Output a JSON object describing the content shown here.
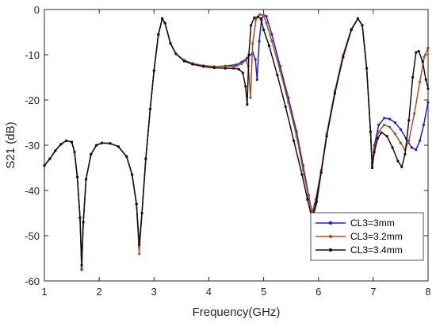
{
  "chart_data": {
    "type": "line",
    "title": "",
    "xlabel": "Frequency(GHz)",
    "ylabel": "S21 (dB)",
    "xlim": [
      1,
      8
    ],
    "ylim": [
      -60,
      0
    ],
    "xticks": [
      1,
      2,
      3,
      4,
      5,
      6,
      7,
      8
    ],
    "yticks": [
      0,
      -10,
      -20,
      -30,
      -40,
      -50,
      -60
    ],
    "grid": false,
    "legend_position": "bottom-right",
    "series": [
      {
        "name": "CL3=3mm",
        "color": "#2020d0",
        "marker": "dot",
        "points": [
          [
            1.0,
            -34.5
          ],
          [
            1.1,
            -33.0
          ],
          [
            1.2,
            -31.2
          ],
          [
            1.3,
            -29.8
          ],
          [
            1.4,
            -29.0
          ],
          [
            1.5,
            -29.3
          ],
          [
            1.55,
            -31.5
          ],
          [
            1.6,
            -37.0
          ],
          [
            1.65,
            -46.0
          ],
          [
            1.68,
            -57.5
          ],
          [
            1.71,
            -47.0
          ],
          [
            1.76,
            -37.5
          ],
          [
            1.85,
            -32.0
          ],
          [
            1.95,
            -30.0
          ],
          [
            2.05,
            -29.5
          ],
          [
            2.2,
            -29.6
          ],
          [
            2.35,
            -30.3
          ],
          [
            2.5,
            -32.5
          ],
          [
            2.6,
            -36.5
          ],
          [
            2.68,
            -43.0
          ],
          [
            2.73,
            -52.5
          ],
          [
            2.78,
            -45.0
          ],
          [
            2.85,
            -33.0
          ],
          [
            2.93,
            -22.0
          ],
          [
            3.0,
            -13.5
          ],
          [
            3.08,
            -5.5
          ],
          [
            3.15,
            -2.0
          ],
          [
            3.2,
            -3.0
          ],
          [
            3.3,
            -7.5
          ],
          [
            3.4,
            -9.8
          ],
          [
            3.55,
            -11.2
          ],
          [
            3.7,
            -11.9
          ],
          [
            3.9,
            -12.4
          ],
          [
            4.1,
            -12.6
          ],
          [
            4.3,
            -12.5
          ],
          [
            4.5,
            -12.2
          ],
          [
            4.6,
            -11.6
          ],
          [
            4.7,
            -10.7
          ],
          [
            4.8,
            -9.6
          ],
          [
            4.85,
            -11.0
          ],
          [
            4.88,
            -15.5
          ],
          [
            4.92,
            -7.0
          ],
          [
            4.96,
            -2.3
          ],
          [
            5.0,
            -1.2
          ],
          [
            5.05,
            -1.5
          ],
          [
            5.15,
            -5.5
          ],
          [
            5.3,
            -12.5
          ],
          [
            5.45,
            -19.5
          ],
          [
            5.6,
            -27.0
          ],
          [
            5.72,
            -34.5
          ],
          [
            5.82,
            -41.0
          ],
          [
            5.9,
            -46.0
          ],
          [
            5.97,
            -42.5
          ],
          [
            6.05,
            -36.0
          ],
          [
            6.15,
            -28.0
          ],
          [
            6.3,
            -18.5
          ],
          [
            6.45,
            -10.5
          ],
          [
            6.6,
            -4.5
          ],
          [
            6.72,
            -2.0
          ],
          [
            6.8,
            -3.5
          ],
          [
            6.88,
            -13.0
          ],
          [
            6.95,
            -27.0
          ],
          [
            6.98,
            -34.0
          ],
          [
            7.02,
            -30.0
          ],
          [
            7.1,
            -25.5
          ],
          [
            7.2,
            -24.0
          ],
          [
            7.3,
            -24.2
          ],
          [
            7.4,
            -25.0
          ],
          [
            7.5,
            -26.5
          ],
          [
            7.6,
            -28.5
          ],
          [
            7.7,
            -30.5
          ],
          [
            7.78,
            -31.0
          ],
          [
            7.85,
            -29.0
          ],
          [
            7.92,
            -25.5
          ],
          [
            8.0,
            -20.5
          ]
        ]
      },
      {
        "name": "CL3=3.2mm",
        "color": "#a0522d",
        "marker": "dot",
        "points": [
          [
            1.0,
            -34.5
          ],
          [
            1.1,
            -33.0
          ],
          [
            1.2,
            -31.2
          ],
          [
            1.3,
            -29.8
          ],
          [
            1.4,
            -29.0
          ],
          [
            1.5,
            -29.3
          ],
          [
            1.55,
            -31.5
          ],
          [
            1.6,
            -37.0
          ],
          [
            1.65,
            -46.0
          ],
          [
            1.68,
            -57.0
          ],
          [
            1.71,
            -47.0
          ],
          [
            1.76,
            -37.5
          ],
          [
            1.85,
            -32.0
          ],
          [
            1.95,
            -30.0
          ],
          [
            2.05,
            -29.5
          ],
          [
            2.2,
            -29.6
          ],
          [
            2.35,
            -30.3
          ],
          [
            2.5,
            -32.5
          ],
          [
            2.6,
            -36.5
          ],
          [
            2.68,
            -43.0
          ],
          [
            2.73,
            -54.0
          ],
          [
            2.78,
            -45.0
          ],
          [
            2.85,
            -33.0
          ],
          [
            2.93,
            -22.0
          ],
          [
            3.0,
            -13.5
          ],
          [
            3.08,
            -5.5
          ],
          [
            3.15,
            -2.0
          ],
          [
            3.2,
            -3.0
          ],
          [
            3.3,
            -7.5
          ],
          [
            3.4,
            -9.8
          ],
          [
            3.55,
            -11.2
          ],
          [
            3.7,
            -11.9
          ],
          [
            3.9,
            -12.4
          ],
          [
            4.1,
            -12.6
          ],
          [
            4.3,
            -12.6
          ],
          [
            4.5,
            -12.5
          ],
          [
            4.6,
            -12.0
          ],
          [
            4.68,
            -11.2
          ],
          [
            4.72,
            -12.5
          ],
          [
            4.76,
            -19.5
          ],
          [
            4.8,
            -7.5
          ],
          [
            4.86,
            -2.2
          ],
          [
            4.93,
            -1.1
          ],
          [
            5.0,
            -1.3
          ],
          [
            5.05,
            -3.0
          ],
          [
            5.15,
            -7.0
          ],
          [
            5.3,
            -13.5
          ],
          [
            5.45,
            -20.5
          ],
          [
            5.6,
            -28.0
          ],
          [
            5.72,
            -35.5
          ],
          [
            5.82,
            -41.5
          ],
          [
            5.88,
            -45.0
          ],
          [
            5.95,
            -42.0
          ],
          [
            6.05,
            -35.5
          ],
          [
            6.15,
            -27.5
          ],
          [
            6.3,
            -18.0
          ],
          [
            6.45,
            -10.0
          ],
          [
            6.6,
            -4.3
          ],
          [
            6.72,
            -2.0
          ],
          [
            6.8,
            -3.5
          ],
          [
            6.88,
            -13.0
          ],
          [
            6.95,
            -27.0
          ],
          [
            6.98,
            -34.5
          ],
          [
            7.02,
            -30.5
          ],
          [
            7.1,
            -27.0
          ],
          [
            7.2,
            -25.5
          ],
          [
            7.3,
            -26.0
          ],
          [
            7.4,
            -27.5
          ],
          [
            7.5,
            -29.5
          ],
          [
            7.58,
            -31.0
          ],
          [
            7.65,
            -29.0
          ],
          [
            7.75,
            -23.0
          ],
          [
            7.85,
            -16.0
          ],
          [
            7.93,
            -10.5
          ],
          [
            8.0,
            -8.5
          ]
        ]
      },
      {
        "name": "CL3=3.4mm",
        "color": "#111111",
        "marker": "dot",
        "points": [
          [
            1.0,
            -34.5
          ],
          [
            1.1,
            -33.0
          ],
          [
            1.2,
            -31.2
          ],
          [
            1.3,
            -29.8
          ],
          [
            1.4,
            -29.0
          ],
          [
            1.5,
            -29.3
          ],
          [
            1.55,
            -31.5
          ],
          [
            1.6,
            -37.0
          ],
          [
            1.65,
            -46.0
          ],
          [
            1.68,
            -56.5
          ],
          [
            1.71,
            -47.0
          ],
          [
            1.76,
            -37.5
          ],
          [
            1.85,
            -32.0
          ],
          [
            1.95,
            -30.0
          ],
          [
            2.05,
            -29.5
          ],
          [
            2.2,
            -29.6
          ],
          [
            2.35,
            -30.3
          ],
          [
            2.5,
            -32.5
          ],
          [
            2.6,
            -36.5
          ],
          [
            2.68,
            -43.0
          ],
          [
            2.73,
            -52.0
          ],
          [
            2.78,
            -45.0
          ],
          [
            2.85,
            -33.0
          ],
          [
            2.93,
            -22.0
          ],
          [
            3.0,
            -13.5
          ],
          [
            3.08,
            -5.5
          ],
          [
            3.15,
            -2.0
          ],
          [
            3.2,
            -3.0
          ],
          [
            3.3,
            -7.5
          ],
          [
            3.4,
            -9.8
          ],
          [
            3.55,
            -11.4
          ],
          [
            3.7,
            -12.1
          ],
          [
            3.9,
            -12.6
          ],
          [
            4.1,
            -12.9
          ],
          [
            4.3,
            -13.0
          ],
          [
            4.45,
            -13.0
          ],
          [
            4.55,
            -13.2
          ],
          [
            4.62,
            -14.0
          ],
          [
            4.67,
            -17.0
          ],
          [
            4.7,
            -21.0
          ],
          [
            4.73,
            -10.0
          ],
          [
            4.77,
            -3.5
          ],
          [
            4.83,
            -1.8
          ],
          [
            4.9,
            -1.6
          ],
          [
            4.95,
            -2.0
          ],
          [
            5.0,
            -4.5
          ],
          [
            5.1,
            -8.0
          ],
          [
            5.25,
            -14.5
          ],
          [
            5.4,
            -21.5
          ],
          [
            5.55,
            -29.0
          ],
          [
            5.7,
            -36.5
          ],
          [
            5.8,
            -42.0
          ],
          [
            5.88,
            -46.0
          ],
          [
            5.95,
            -43.0
          ],
          [
            6.05,
            -36.0
          ],
          [
            6.15,
            -28.0
          ],
          [
            6.3,
            -18.5
          ],
          [
            6.45,
            -10.5
          ],
          [
            6.6,
            -4.5
          ],
          [
            6.72,
            -2.0
          ],
          [
            6.8,
            -3.5
          ],
          [
            6.88,
            -13.0
          ],
          [
            6.95,
            -27.0
          ],
          [
            6.98,
            -35.0
          ],
          [
            7.02,
            -31.5
          ],
          [
            7.08,
            -28.5
          ],
          [
            7.15,
            -27.2
          ],
          [
            7.25,
            -28.0
          ],
          [
            7.35,
            -30.5
          ],
          [
            7.45,
            -33.5
          ],
          [
            7.52,
            -34.8
          ],
          [
            7.58,
            -32.0
          ],
          [
            7.65,
            -24.5
          ],
          [
            7.72,
            -15.0
          ],
          [
            7.78,
            -9.5
          ],
          [
            7.83,
            -9.2
          ],
          [
            7.9,
            -11.5
          ],
          [
            7.96,
            -15.5
          ],
          [
            8.0,
            -17.5
          ]
        ]
      }
    ]
  }
}
